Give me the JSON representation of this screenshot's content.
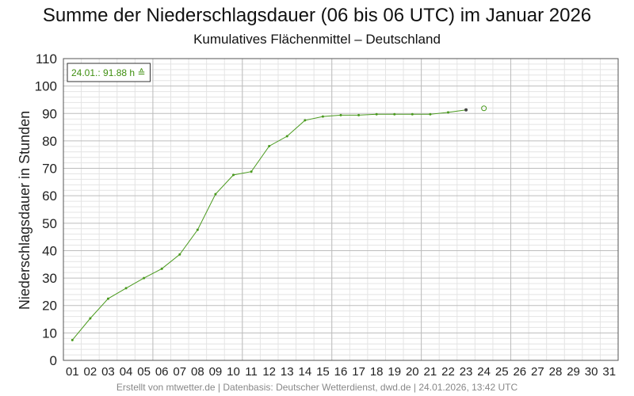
{
  "title": "Summe der Niederschlagsdauer (06 bis 06 UTC) im Januar 2026",
  "subtitle": "Kumulatives Flächenmittel – Deutschland",
  "footer": "Erstellt von mtwetter.de | Datenbasis: Deutscher Wetterdienst, dwd.de | 24.01.2026, 13:42 UTC",
  "colors": {
    "line": "#4a9a1e",
    "annotation_text": "#3f8f10",
    "grid_major": "#bdbdbd",
    "grid_minor": "#e4e4e4"
  },
  "chart_data": {
    "type": "line",
    "xlabel": "",
    "ylabel": "Niederschlagsdauer in Stunden",
    "ylim": [
      0,
      110
    ],
    "yticks": [
      0,
      10,
      20,
      30,
      40,
      50,
      60,
      70,
      80,
      90,
      100,
      110
    ],
    "categories": [
      "01",
      "02",
      "03",
      "04",
      "05",
      "06",
      "07",
      "08",
      "09",
      "10",
      "11",
      "12",
      "13",
      "14",
      "15",
      "16",
      "17",
      "18",
      "19",
      "20",
      "21",
      "22",
      "23",
      "24",
      "25",
      "26",
      "27",
      "28",
      "29",
      "30",
      "31"
    ],
    "series": [
      {
        "values": [
          7.4,
          15.3,
          22.5,
          26.3,
          30.0,
          33.4,
          38.6,
          47.6,
          60.6,
          67.6,
          68.8,
          78.1,
          81.7,
          87.5,
          88.9,
          89.4,
          89.4,
          89.7,
          89.7,
          89.7,
          89.7,
          90.4,
          91.3,
          null,
          null,
          null,
          null,
          null,
          null,
          null,
          null
        ],
        "current": {
          "x": "24",
          "y": 91.88
        }
      }
    ],
    "annotation": "24.01.: 91.88 h ≙",
    "grid": true,
    "major_x_every": [
      "06",
      "11",
      "16",
      "21",
      "26"
    ]
  }
}
